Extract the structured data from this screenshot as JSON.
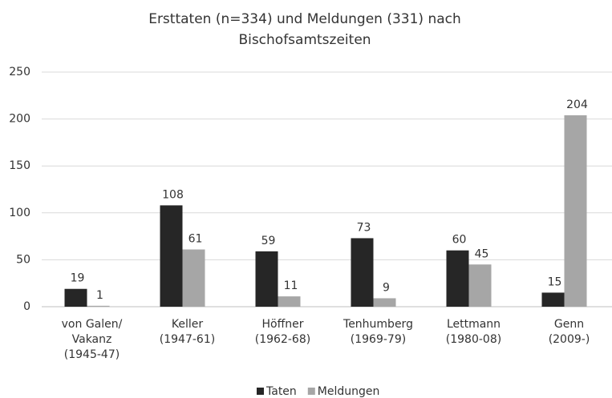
{
  "chart_data": {
    "type": "bar",
    "title": [
      "Ersttaten (n=334) und Meldungen (331) nach",
      "Bischofsamtszeiten"
    ],
    "categories": [
      [
        "von Galen/",
        "Vakanz",
        "(1945-47)"
      ],
      [
        "Keller",
        "(1947-61)"
      ],
      [
        "Höffner",
        "(1962-68)"
      ],
      [
        "Tenhumberg",
        "(1969-79)"
      ],
      [
        "Lettmann",
        "(1980-08)"
      ],
      [
        "Genn",
        "(2009-)"
      ]
    ],
    "series": [
      {
        "name": "Taten",
        "color": "#262626",
        "values": [
          19,
          108,
          59,
          73,
          60,
          15
        ]
      },
      {
        "name": "Meldungen",
        "color": "#a6a6a6",
        "values": [
          1,
          61,
          11,
          9,
          45,
          204
        ]
      }
    ],
    "ylim": [
      0,
      250
    ],
    "yticks": [
      0,
      50,
      100,
      150,
      200,
      250
    ],
    "grid": true,
    "legend": "bottom"
  }
}
